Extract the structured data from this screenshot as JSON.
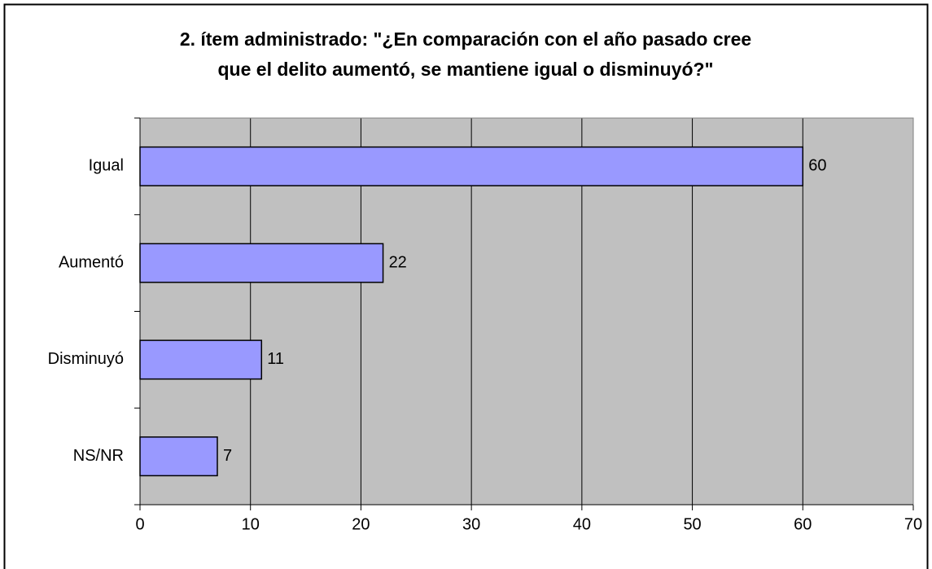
{
  "chart_data": {
    "type": "bar",
    "orientation": "horizontal",
    "title": [
      "2. ítem administrado: \"¿En comparación con el año pasado cree",
      "que el delito aumentó, se mantiene igual o disminuyó?\""
    ],
    "categories": [
      "Igual",
      "Aumentó",
      "Disminuyó",
      "NS/NR"
    ],
    "values": [
      60,
      22,
      11,
      7
    ],
    "color": "#9999ff",
    "xlim": [
      0,
      70
    ],
    "xticks": [
      0,
      10,
      20,
      30,
      40,
      50,
      60,
      70
    ],
    "grid": true
  }
}
